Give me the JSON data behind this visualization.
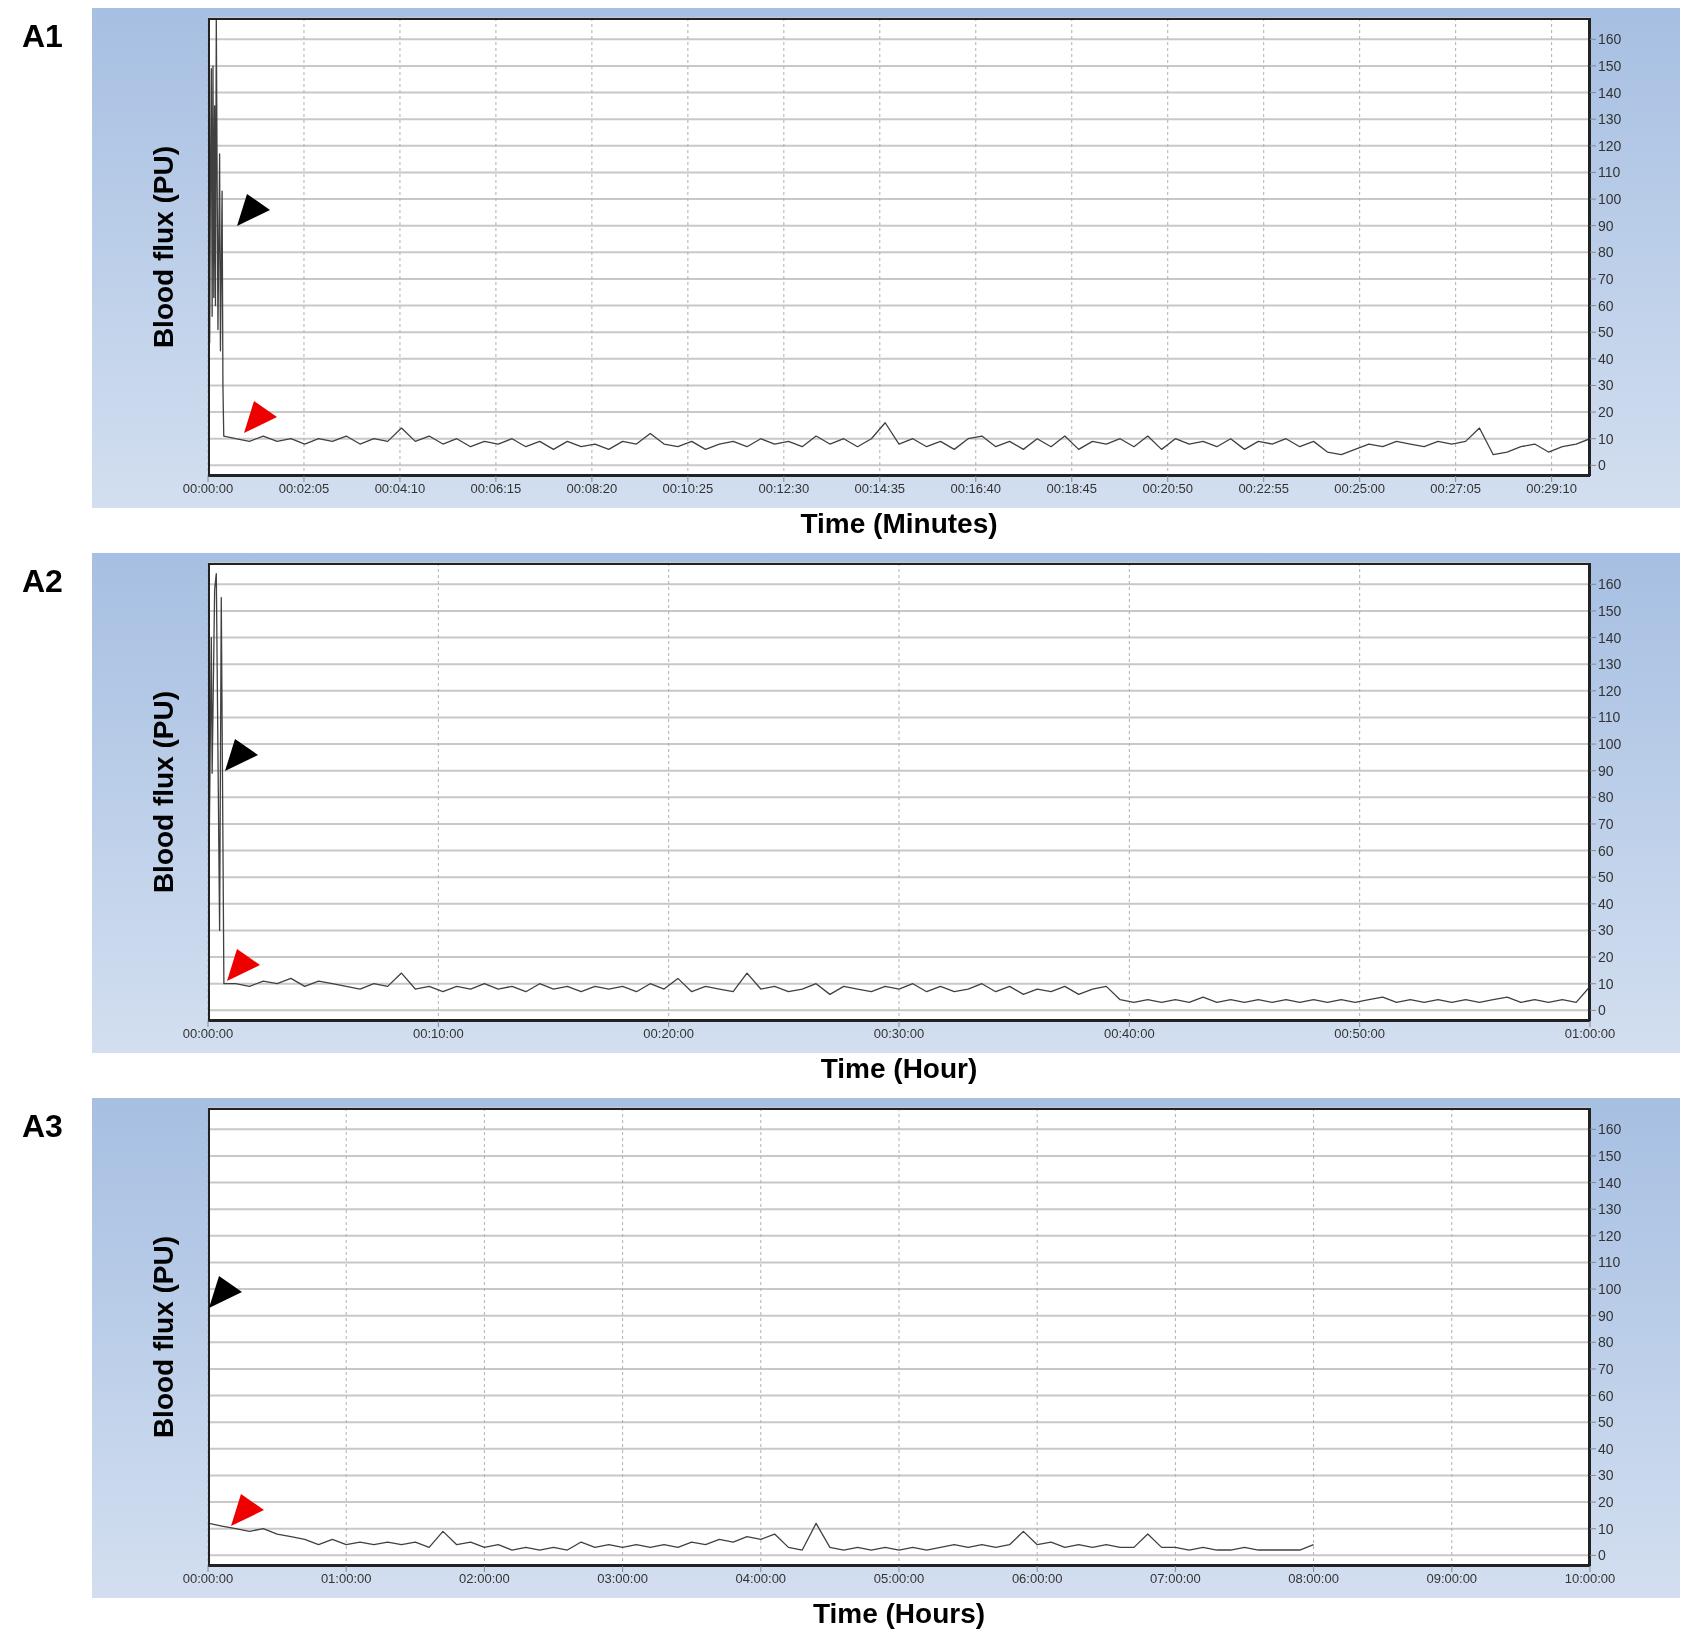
{
  "chart_data": [
    {
      "type": "line",
      "title": "A1",
      "xlabel": "Time (Minutes)",
      "ylabel": "Blood flux (PU)",
      "grid": true,
      "marker": "none",
      "line_style": "solid",
      "xlim": [
        0,
        0.5
      ],
      "ylim": [
        -4,
        168
      ],
      "xticks": [
        {
          "value": 0,
          "label": "00:00:00"
        },
        {
          "value": 0.034722,
          "label": "00:02:05"
        },
        {
          "value": 0.069444,
          "label": "00:04:10"
        },
        {
          "value": 0.104167,
          "label": "00:06:15"
        },
        {
          "value": 0.138889,
          "label": "00:08:20"
        },
        {
          "value": 0.173611,
          "label": "00:10:25"
        },
        {
          "value": 0.208333,
          "label": "00:12:30"
        },
        {
          "value": 0.243056,
          "label": "00:14:35"
        },
        {
          "value": 0.277778,
          "label": "00:16:40"
        },
        {
          "value": 0.3125,
          "label": "00:18:45"
        },
        {
          "value": 0.347222,
          "label": "00:20:50"
        },
        {
          "value": 0.381944,
          "label": "00:22:55"
        },
        {
          "value": 0.416667,
          "label": "00:25:00"
        },
        {
          "value": 0.451389,
          "label": "00:27:05"
        },
        {
          "value": 0.486111,
          "label": "00:29:10"
        }
      ],
      "yticks": [
        0,
        10,
        20,
        30,
        40,
        50,
        60,
        70,
        80,
        90,
        100,
        110,
        120,
        130,
        140,
        150,
        160
      ],
      "series": [
        {
          "color": "#404040",
          "x": [
            0,
            0.0003,
            0.0006,
            0.0009,
            0.0012,
            0.0015,
            0.0018,
            0.0021,
            0.0024,
            0.0027,
            0.003,
            0.0036,
            0.0042,
            0.0045,
            0.0051,
            0.0054,
            0.0057,
            0.01,
            0.015,
            0.02,
            0.025,
            0.03,
            0.035,
            0.04,
            0.045,
            0.05,
            0.055,
            0.06,
            0.065,
            0.07,
            0.075,
            0.08,
            0.085,
            0.09,
            0.095,
            0.1,
            0.105,
            0.11,
            0.115,
            0.12,
            0.125,
            0.13,
            0.135,
            0.14,
            0.145,
            0.15,
            0.155,
            0.16,
            0.165,
            0.17,
            0.175,
            0.18,
            0.185,
            0.19,
            0.195,
            0.2,
            0.205,
            0.21,
            0.215,
            0.22,
            0.225,
            0.23,
            0.235,
            0.24,
            0.245,
            0.25,
            0.255,
            0.26,
            0.265,
            0.27,
            0.275,
            0.28,
            0.285,
            0.29,
            0.295,
            0.3,
            0.305,
            0.31,
            0.315,
            0.32,
            0.325,
            0.33,
            0.335,
            0.34,
            0.345,
            0.35,
            0.355,
            0.36,
            0.365,
            0.37,
            0.375,
            0.38,
            0.385,
            0.39,
            0.395,
            0.4,
            0.405,
            0.41,
            0.415,
            0.42,
            0.425,
            0.43,
            0.435,
            0.44,
            0.445,
            0.45,
            0.455,
            0.46,
            0.465,
            0.47,
            0.475,
            0.48,
            0.485,
            0.49,
            0.495,
            0.5
          ],
          "values": [
            15,
            148,
            46,
            110,
            149,
            56,
            150,
            63,
            135,
            60,
            168,
            51,
            117,
            43,
            103,
            30,
            11,
            10,
            9,
            11,
            9,
            10,
            8,
            10,
            9,
            11,
            8,
            10,
            9,
            14,
            9,
            11,
            8,
            10,
            7,
            9,
            8,
            10,
            7,
            9,
            6,
            9,
            7,
            8,
            6,
            9,
            8,
            12,
            8,
            7,
            9,
            6,
            8,
            9,
            7,
            10,
            8,
            9,
            7,
            11,
            8,
            10,
            7,
            10,
            16,
            8,
            10,
            7,
            9,
            6,
            10,
            11,
            7,
            9,
            6,
            10,
            7,
            11,
            6,
            9,
            8,
            10,
            7,
            11,
            6,
            10,
            8,
            9,
            7,
            10,
            6,
            9,
            8,
            10,
            7,
            9,
            5,
            4,
            6,
            8,
            7,
            9,
            8,
            7,
            9,
            8,
            9,
            14,
            4,
            5,
            7,
            8,
            5,
            7,
            8,
            10
          ]
        }
      ]
    },
    {
      "type": "line",
      "title": "A2",
      "xlabel": "Time (Hour)",
      "ylabel": "Blood flux (PU)",
      "grid": true,
      "marker": "none",
      "line_style": "solid",
      "xlim": [
        0,
        1
      ],
      "ylim": [
        -4,
        168
      ],
      "xticks": [
        {
          "value": 0,
          "label": "00:00:00"
        },
        {
          "value": 0.166667,
          "label": "00:10:00"
        },
        {
          "value": 0.333333,
          "label": "00:20:00"
        },
        {
          "value": 0.5,
          "label": "00:30:00"
        },
        {
          "value": 0.666667,
          "label": "00:40:00"
        },
        {
          "value": 0.833333,
          "label": "00:50:00"
        },
        {
          "value": 1,
          "label": "01:00:00"
        }
      ],
      "yticks": [
        0,
        10,
        20,
        30,
        40,
        50,
        60,
        70,
        80,
        90,
        100,
        110,
        120,
        130,
        140,
        150,
        160
      ],
      "series": [
        {
          "color": "#404040",
          "x": [
            0,
            0.0024,
            0.003,
            0.0048,
            0.006,
            0.0084,
            0.0096,
            0.0115,
            0.02,
            0.03,
            0.04,
            0.05,
            0.06,
            0.07,
            0.08,
            0.09,
            0.1,
            0.11,
            0.12,
            0.13,
            0.14,
            0.15,
            0.16,
            0.17,
            0.18,
            0.19,
            0.2,
            0.21,
            0.22,
            0.23,
            0.24,
            0.25,
            0.26,
            0.27,
            0.28,
            0.29,
            0.3,
            0.31,
            0.32,
            0.33,
            0.34,
            0.35,
            0.36,
            0.37,
            0.38,
            0.39,
            0.4,
            0.41,
            0.42,
            0.43,
            0.44,
            0.45,
            0.46,
            0.47,
            0.48,
            0.49,
            0.5,
            0.51,
            0.52,
            0.53,
            0.54,
            0.55,
            0.56,
            0.57,
            0.58,
            0.59,
            0.6,
            0.61,
            0.62,
            0.63,
            0.64,
            0.65,
            0.66,
            0.67,
            0.68,
            0.69,
            0.7,
            0.71,
            0.72,
            0.73,
            0.74,
            0.75,
            0.76,
            0.77,
            0.78,
            0.79,
            0.8,
            0.81,
            0.82,
            0.83,
            0.84,
            0.85,
            0.86,
            0.87,
            0.88,
            0.89,
            0.9,
            0.91,
            0.92,
            0.93,
            0.94,
            0.95,
            0.96,
            0.97,
            0.98,
            0.99,
            1
          ],
          "values": [
            16,
            140,
            89,
            158,
            164,
            30,
            155,
            10,
            10,
            9,
            11,
            10,
            12,
            9,
            11,
            10,
            9,
            8,
            10,
            9,
            14,
            8,
            9,
            7,
            9,
            8,
            10,
            8,
            9,
            7,
            10,
            8,
            9,
            7,
            9,
            8,
            9,
            7,
            10,
            8,
            12,
            7,
            9,
            8,
            7,
            14,
            8,
            9,
            7,
            8,
            10,
            6,
            9,
            8,
            7,
            9,
            8,
            10,
            7,
            9,
            7,
            8,
            10,
            7,
            9,
            6,
            8,
            7,
            9,
            6,
            8,
            9,
            4,
            3,
            4,
            3,
            4,
            3,
            5,
            3,
            4,
            3,
            4,
            3,
            4,
            3,
            4,
            3,
            4,
            3,
            4,
            5,
            3,
            4,
            3,
            4,
            3,
            4,
            3,
            4,
            5,
            3,
            4,
            3,
            4,
            3,
            9
          ]
        }
      ]
    },
    {
      "type": "line",
      "title": "A3",
      "xlabel": "Time (Hours)",
      "ylabel": "Blood flux (PU)",
      "grid": true,
      "marker": "none",
      "line_style": "solid",
      "xlim": [
        0,
        10
      ],
      "ylim": [
        -4,
        168
      ],
      "xticks": [
        {
          "value": 0,
          "label": "00:00:00"
        },
        {
          "value": 1,
          "label": "01:00:00"
        },
        {
          "value": 2,
          "label": "02:00:00"
        },
        {
          "value": 3,
          "label": "03:00:00"
        },
        {
          "value": 4,
          "label": "04:00:00"
        },
        {
          "value": 5,
          "label": "05:00:00"
        },
        {
          "value": 6,
          "label": "06:00:00"
        },
        {
          "value": 7,
          "label": "07:00:00"
        },
        {
          "value": 8,
          "label": "08:00:00"
        },
        {
          "value": 9,
          "label": "09:00:00"
        },
        {
          "value": 10,
          "label": "10:00:00"
        }
      ],
      "yticks": [
        0,
        10,
        20,
        30,
        40,
        50,
        60,
        70,
        80,
        90,
        100,
        110,
        120,
        130,
        140,
        150,
        160
      ],
      "series": [
        {
          "color": "#404040",
          "x": [
            0,
            0.003,
            0.008,
            0.1,
            0.2,
            0.3,
            0.4,
            0.5,
            0.6,
            0.7,
            0.8,
            0.9,
            1,
            1.1,
            1.2,
            1.3,
            1.4,
            1.5,
            1.6,
            1.7,
            1.8,
            1.9,
            2,
            2.1,
            2.2,
            2.3,
            2.4,
            2.5,
            2.6,
            2.7,
            2.8,
            2.9,
            3,
            3.1,
            3.2,
            3.3,
            3.4,
            3.5,
            3.6,
            3.7,
            3.8,
            3.9,
            4,
            4.1,
            4.2,
            4.3,
            4.4,
            4.5,
            4.6,
            4.7,
            4.8,
            4.9,
            5,
            5.1,
            5.2,
            5.3,
            5.4,
            5.5,
            5.6,
            5.7,
            5.8,
            5.9,
            6,
            6.1,
            6.2,
            6.3,
            6.4,
            6.5,
            6.6,
            6.7,
            6.8,
            6.9,
            7,
            7.1,
            7.2,
            7.3,
            7.4,
            7.5,
            7.6,
            7.7,
            7.8,
            7.9,
            8
          ],
          "values": [
            12,
            100,
            12,
            11,
            10,
            9,
            10,
            8,
            7,
            6,
            4,
            6,
            4,
            5,
            4,
            5,
            4,
            5,
            3,
            9,
            4,
            5,
            3,
            4,
            2,
            3,
            2,
            3,
            2,
            5,
            3,
            4,
            3,
            4,
            3,
            4,
            3,
            5,
            4,
            6,
            5,
            7,
            6,
            8,
            3,
            2,
            12,
            3,
            2,
            3,
            2,
            3,
            2,
            3,
            2,
            3,
            4,
            3,
            4,
            3,
            4,
            9,
            4,
            5,
            3,
            4,
            3,
            4,
            3,
            3,
            8,
            3,
            3,
            2,
            3,
            2,
            2,
            3,
            2,
            2,
            2,
            2,
            4
          ]
        }
      ]
    }
  ]
}
